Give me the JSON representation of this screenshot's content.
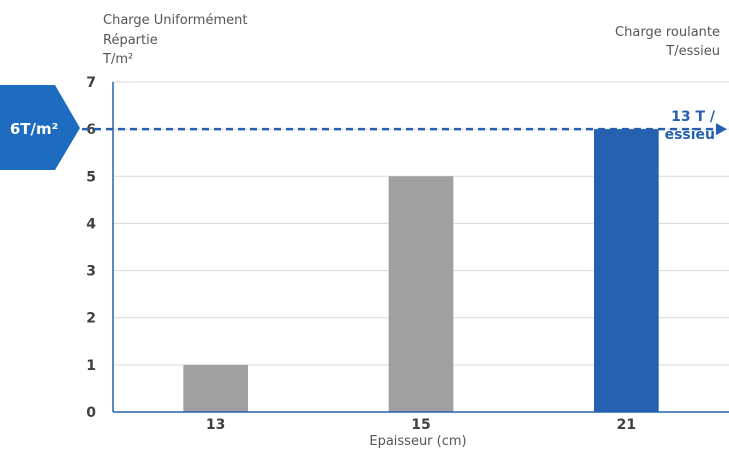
{
  "chart_data": {
    "type": "bar",
    "categories": [
      "13",
      "15",
      "21"
    ],
    "values": [
      1,
      5,
      6
    ],
    "bar_colors": [
      "#a0a0a0",
      "#a0a0a0",
      "#2660b0"
    ],
    "ylim": [
      0,
      7
    ],
    "yticks": [
      "0",
      "1",
      "2",
      "3",
      "4",
      "5",
      "6",
      "7"
    ],
    "ylabel_lines": [
      "Charge Uniformément",
      "Répartie",
      "T/m²"
    ],
    "right_label_lines": [
      "Charge roulante",
      "T/essieu"
    ],
    "xlabel": "Epaisseur (cm)",
    "reference_line": {
      "value": 6,
      "color": "#2660b0",
      "label_lines": [
        "13 T /",
        "essieu"
      ]
    },
    "callout": {
      "text": "6T/m²",
      "color": "#1d6cc0"
    },
    "grid": true,
    "axis_color": "#2660b0",
    "grid_color": "#d9d9d9"
  }
}
